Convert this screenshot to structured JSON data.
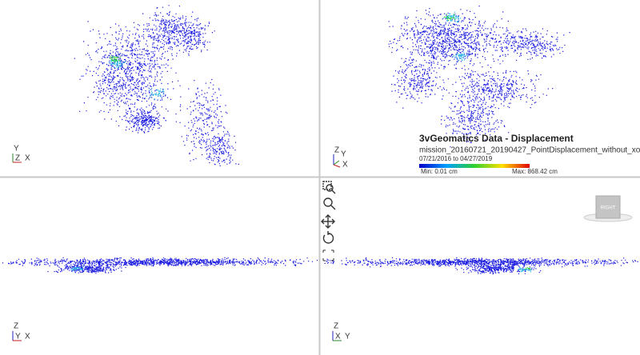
{
  "viewports": [
    {
      "axes": {
        "up": "Y",
        "left": "Z",
        "right": "X"
      }
    },
    {
      "axes": {
        "up": "Z",
        "left": "Y",
        "right": "X"
      }
    },
    {
      "axes": {
        "up": "Z",
        "left": "Y",
        "right": "X"
      }
    },
    {
      "axes": {
        "up": "Z",
        "left": "X",
        "right": "Y"
      }
    }
  ],
  "legend": {
    "title": "3vGeomatics Data - Displacement",
    "dataset": "mission_20160721_20190427_PointDisplacement_without_xo",
    "date_range": "07/21/2016 to 04/27/2019",
    "min": "Min: 0.01 cm",
    "max": "Max: 868.42 cm"
  },
  "view_cube": {
    "label": "RIGHT"
  }
}
